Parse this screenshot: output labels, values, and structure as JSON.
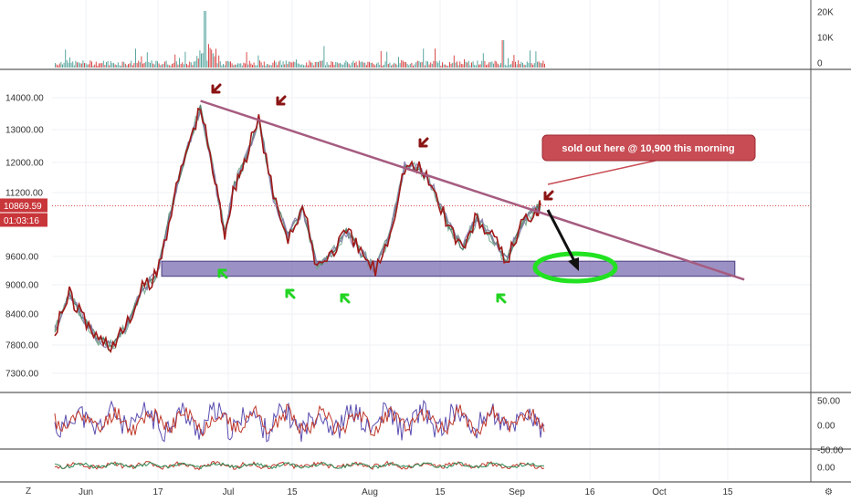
{
  "chart_data": {
    "type": "line",
    "instrument": "BTC price chart (candles, moving averages, volume, oscillators)",
    "volume_axis": {
      "ticks": [
        "20K",
        "10K",
        "0"
      ]
    },
    "price_axis": {
      "ticks": [
        "14000.00",
        "13000.00",
        "12000.00",
        "11200.00",
        "9600.00",
        "9000.00",
        "8400.00",
        "7800.00",
        "7300.00"
      ],
      "current_price_label": "10869.59",
      "countdown_label": "01:03:16",
      "ylim": [
        7050,
        14700
      ]
    },
    "oscillator1_axis": {
      "ticks": [
        "50.00",
        "0.00",
        "-50.00"
      ]
    },
    "oscillator2_axis": {
      "ticks": [
        "0.00"
      ]
    },
    "x_axis": {
      "ticks": [
        "Jun",
        "17",
        "Jul",
        "15",
        "Aug",
        "15",
        "Sep",
        "16",
        "Oct",
        "15"
      ]
    },
    "price_series": {
      "day_offsets_from_may27": [
        0,
        3,
        6,
        9,
        12,
        15,
        18,
        21,
        24,
        27,
        30,
        33,
        35,
        37,
        39,
        42,
        45,
        48,
        51,
        54,
        57,
        60,
        63,
        66,
        69,
        72,
        75,
        78,
        81,
        84,
        87,
        90,
        93,
        96,
        99,
        100
      ],
      "values": [
        8100,
        8800,
        8300,
        7900,
        7800,
        8200,
        8900,
        9200,
        10800,
        12300,
        13700,
        11500,
        10200,
        11400,
        12000,
        13300,
        11100,
        10100,
        10800,
        9400,
        9700,
        10200,
        9700,
        9300,
        10200,
        11900,
        11850,
        11300,
        10400,
        9800,
        10600,
        10050,
        9500,
        10400,
        10800,
        10870
      ]
    },
    "resistance_line": {
      "from": {
        "day": 30,
        "price": 13900
      },
      "to": {
        "day": 141,
        "price": 9150
      }
    },
    "support_zone": {
      "price_low": 9180,
      "price_high": 9500,
      "day_start": 22,
      "day_end": 140
    },
    "annotations": [
      {
        "text": "sold out here @ 10,900  this morning"
      }
    ],
    "colors": {
      "candles": "#a01818",
      "ma_lines": "#6b9f8a",
      "trend_line": "#a65c80",
      "support_zone": "#7b6cb0",
      "down_arrows": "#8b1414",
      "up_arrows": "#22d422",
      "ellipse": "#22e222",
      "projection_arrow": "#111111",
      "annotation_box": "#c84c54",
      "price_tag": "#c8363a"
    },
    "corner_labels": {
      "left": "Z",
      "right": "⚙"
    }
  }
}
